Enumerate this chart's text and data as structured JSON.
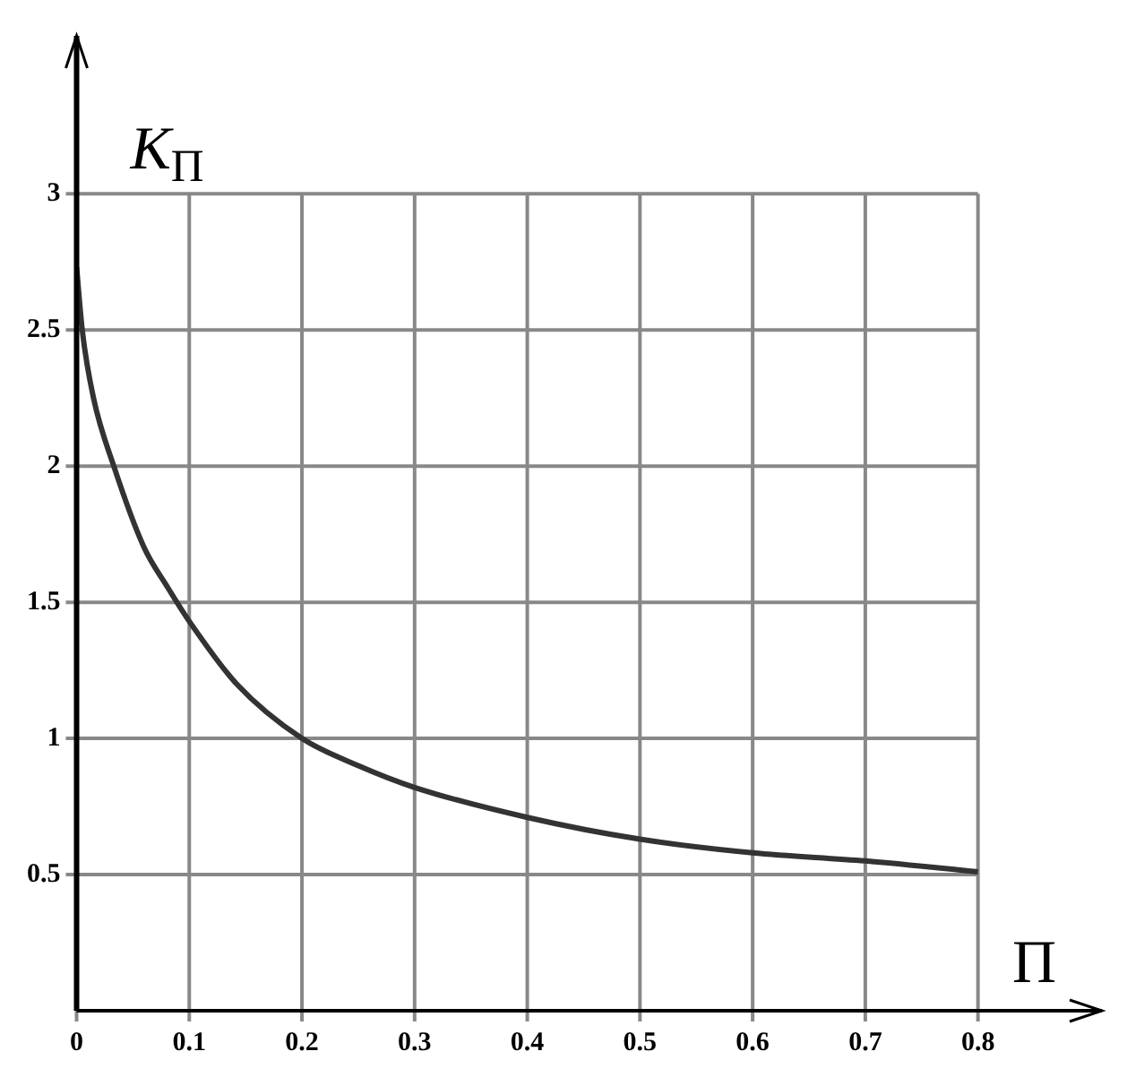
{
  "chart_data": {
    "type": "line",
    "xlabel": "П",
    "ylabel": "K$_{П}$",
    "x": [
      0,
      0.005,
      0.015,
      0.033,
      0.06,
      0.08,
      0.1,
      0.142,
      0.2,
      0.25,
      0.3,
      0.4,
      0.5,
      0.6,
      0.7,
      0.8
    ],
    "series": [
      {
        "color": "#333333",
        "values": [
          2.73,
          2.5,
          2.25,
          2.0,
          1.7,
          1.56,
          1.43,
          1.2,
          1.0,
          0.9,
          0.82,
          0.71,
          0.63,
          0.58,
          0.55,
          0.51
        ]
      }
    ],
    "xlim": [
      0,
      0.91
    ],
    "ylim": [
      0,
      3.58
    ],
    "xticks": [
      0,
      0.1,
      0.2,
      0.3,
      0.4,
      0.5,
      0.6,
      0.7,
      0.8
    ],
    "yticks": [
      0.5,
      1,
      1.5,
      2,
      2.5,
      3
    ],
    "grid": true,
    "legend": false,
    "marker": "none",
    "line_style": "solid"
  }
}
